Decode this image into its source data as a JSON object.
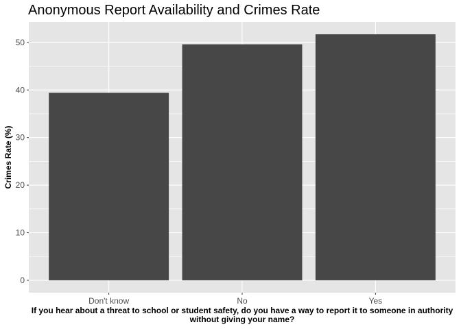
{
  "chart_data": {
    "type": "bar",
    "title": "Anonymous Report Availability and Crimes Rate",
    "xlabel": "If you hear about a threat to school or student safety, do you have a way to report it to someone in authority without giving your name?",
    "ylabel": "Crimes Rate (%)",
    "categories": [
      "Don't know",
      "No",
      "Yes"
    ],
    "values": [
      39.4,
      49.6,
      51.7
    ],
    "ylim": [
      -2.6,
      54.3
    ],
    "yticks": [
      0,
      10,
      20,
      30,
      40,
      50
    ],
    "grid": true,
    "bar_color": "#474747",
    "panel_color": "#e5e5e5",
    "grid_color": "#ffffff"
  }
}
